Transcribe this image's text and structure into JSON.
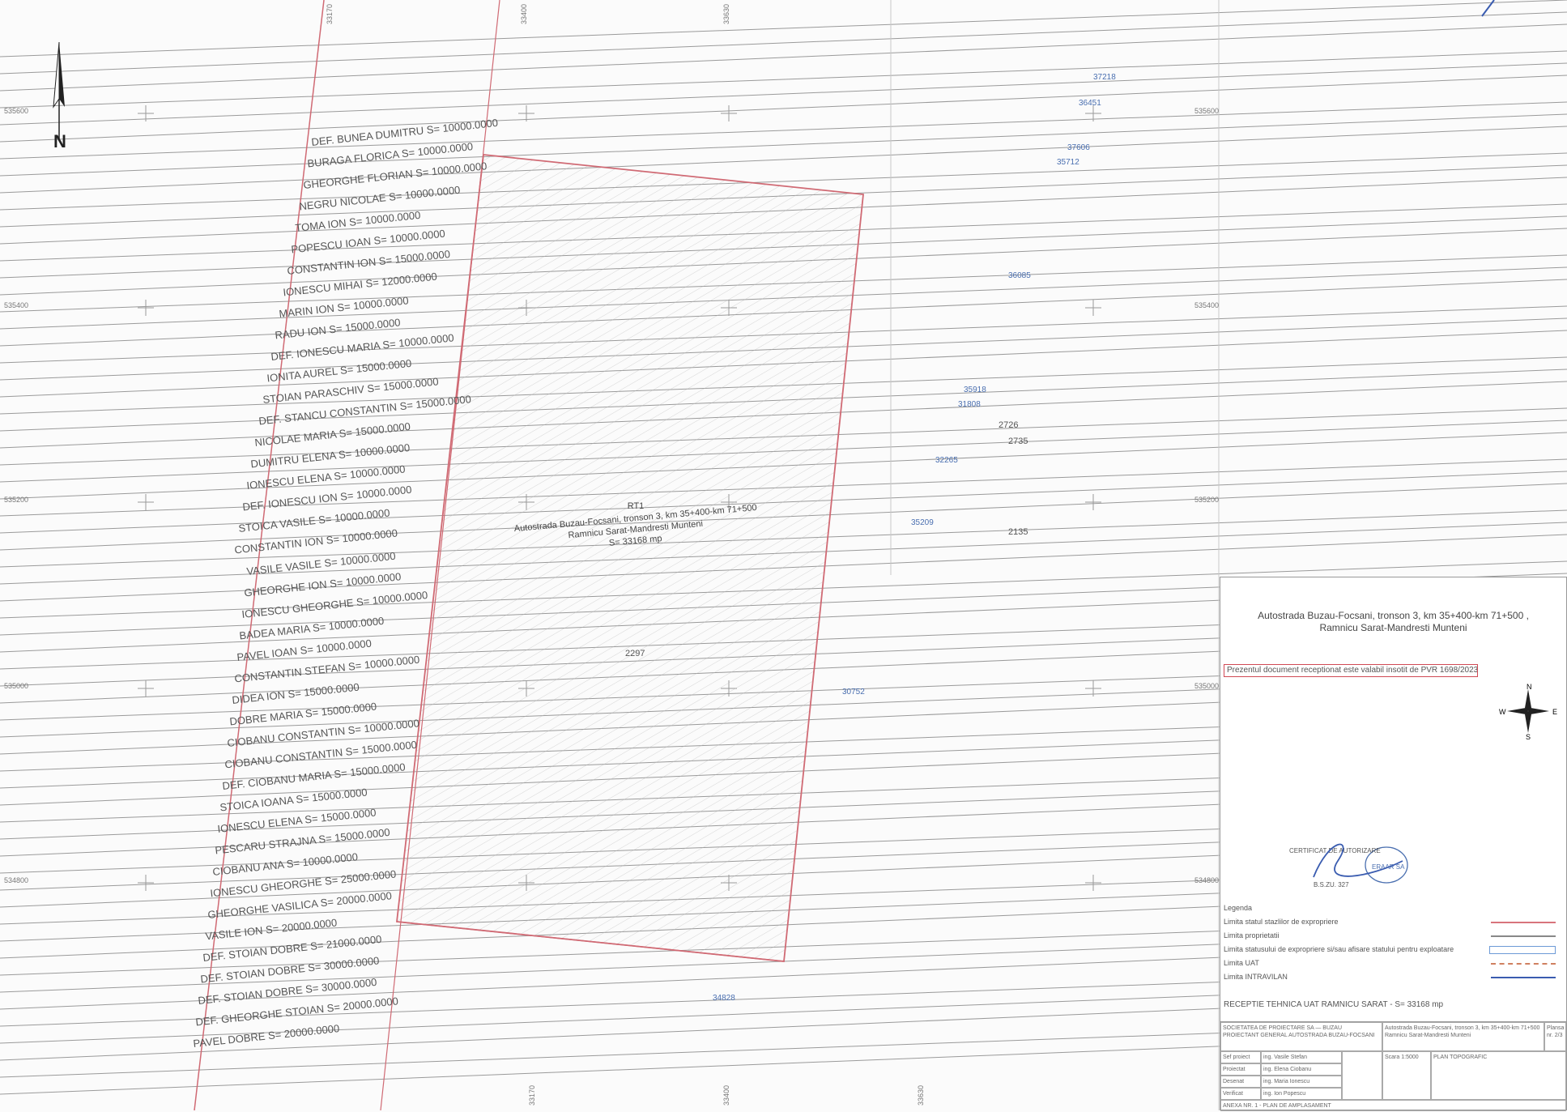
{
  "map": {
    "top_coord_labels": [
      "33170",
      "33400",
      "33630"
    ],
    "left_coord_labels": [
      "535600",
      "535400",
      "535200",
      "535000",
      "534800"
    ],
    "right_coord_labels": [
      "535600",
      "535400",
      "535200",
      "535000",
      "534800"
    ],
    "bottom_coord_labels": [
      "33170",
      "33400",
      "33630"
    ],
    "owner_labels": [
      "DEF. BUNEA DUMITRU  S= 10000.0000",
      "BURAGA FLORICA  S= 10000.0000",
      "GHEORGHE FLORIAN  S= 10000.0000",
      "NEGRU NICOLAE  S= 10000.0000",
      "TOMA ION  S= 10000.0000",
      "POPESCU IOAN  S= 10000.0000",
      "CONSTANTIN ION  S= 15000.0000",
      "IONESCU MIHAI  S= 12000.0000",
      "MARIN ION  S= 10000.0000",
      "RADU ION  S= 15000.0000",
      "DEF. IONESCU MARIA  S= 10000.0000",
      "IONITA AUREL  S= 15000.0000",
      "STOIAN PARASCHIV  S= 15000.0000",
      "DEF. STANCU CONSTANTIN  S= 15000.0000",
      "NICOLAE MARIA  S= 15000.0000",
      "DUMITRU ELENA  S= 10000.0000",
      "IONESCU ELENA  S= 10000.0000",
      "DEF. IONESCU ION  S= 10000.0000",
      "STOICA VASILE  S= 10000.0000",
      "CONSTANTIN ION  S= 10000.0000",
      "VASILE VASILE  S= 10000.0000",
      "GHEORGHE ION  S= 10000.0000",
      "IONESCU GHEORGHE  S= 10000.0000",
      "BADEA MARIA  S= 10000.0000",
      "PAVEL IOAN  S= 10000.0000",
      "CONSTANTIN STEFAN  S= 10000.0000",
      "DIDEA ION  S= 15000.0000",
      "DOBRE MARIA  S= 15000.0000",
      "CIOBANU CONSTANTIN  S= 10000.0000",
      "CIOBANU CONSTANTIN  S= 15000.0000",
      "DEF. CIOBANU MARIA  S= 15000.0000",
      "STOICA IOANA  S= 15000.0000",
      "IONESCU ELENA  S= 15000.0000",
      "PESCARU STRAJNA  S= 15000.0000",
      "CIOBANU ANA  S= 10000.0000",
      "IONESCU GHEORGHE  S= 25000.0000",
      "GHEORGHE VASILICA  S= 20000.0000",
      "VASILE ION  S= 20000.0000",
      "DEF. STOIAN DOBRE  S= 21000.0000",
      "DEF. STOIAN DOBRE  S= 30000.0000",
      "DEF. STOIAN DOBRE  S= 30000.0000",
      "DEF. GHEORGHE STOIAN  S= 20000.0000",
      "PAVEL DOBRE  S= 20000.0000"
    ],
    "parcel_ids_blue": [
      "37218",
      "36451",
      "37606",
      "35712",
      "36085",
      "35918",
      "31808",
      "32265",
      "35209",
      "30752",
      "34828"
    ],
    "parcel_ids_dark": [
      "2726",
      "2735",
      "2135",
      "2297"
    ],
    "center_label": {
      "line1": "RT1",
      "line2": "Autostrada Buzau-Focsani, tronson 3, km 35+400-km 71+500",
      "line3": "Ramnicu Sarat-Mandresti Munteni",
      "line4": "S= 33168 mp"
    },
    "north_letter": "N"
  },
  "title_block": {
    "project_title_line1": "Autostrada Buzau-Focsani, tronson 3, km 35+400-km 71+500 ,",
    "project_title_line2": "Ramnicu Sarat-Mandresti Munteni",
    "validity_note": "Prezentul document receptionat este valabil insotit de PVR 1698/2023",
    "compass": {
      "n": "N",
      "e": "E",
      "s": "S",
      "w": "W"
    },
    "stamp_text_1": "CERTIFICAT DE AUTORIZARE",
    "stamp_text_2": "ERAAR SA",
    "stamp_text_3": "B.S.ZU. 327",
    "legend_heading": "Legenda",
    "legend_items": [
      {
        "label": "Limita statul stazlilor de expropriere",
        "color": "#d8747c",
        "style": "solid"
      },
      {
        "label": "Limita proprietatii",
        "color": "#888888",
        "style": "solid"
      },
      {
        "label": "Limita statusului de expropriere si/sau afisare statului pentru exploatare",
        "color": "#6d9ad6",
        "style": "box"
      },
      {
        "label": "Limita UAT",
        "color": "#d08060",
        "style": "dashed"
      },
      {
        "label": "Limita INTRAVILAN",
        "color": "#3a5cb0",
        "style": "solid"
      }
    ],
    "summary_line": "RECEPTIE TEHNICA UAT RAMNICU SARAT - S= 33168 mp",
    "table": {
      "company": "SOCIETATEA DE PROIECTARE SA — BUZAU",
      "company_sub": "PROIECTANT GENERAL AUTOSTRADA BUZAU-FOCSANI",
      "project_desc": "Autostrada Buzau-Focsani, tronson 3, km 35+400-km 71+500",
      "project_desc2": "Ramnicu Sarat-Mandresti Munteni",
      "rows": [
        {
          "role": "Sef proiect",
          "name": "ing. Vasile Stefan"
        },
        {
          "role": "Proiectat",
          "name": "ing. Elena Ciobanu"
        },
        {
          "role": "Desenat",
          "name": "ing. Maria Ionescu"
        },
        {
          "role": "Verificat",
          "name": "ing. Ion Popescu"
        }
      ],
      "scale_label": "Scara 1:5000",
      "plan_label": "PLAN TOPOGRAFIC",
      "footer": "ANEXA NR. 1 - PLAN DE AMPLASAMENT",
      "plansa": "Plansa nr. 2/3"
    }
  }
}
